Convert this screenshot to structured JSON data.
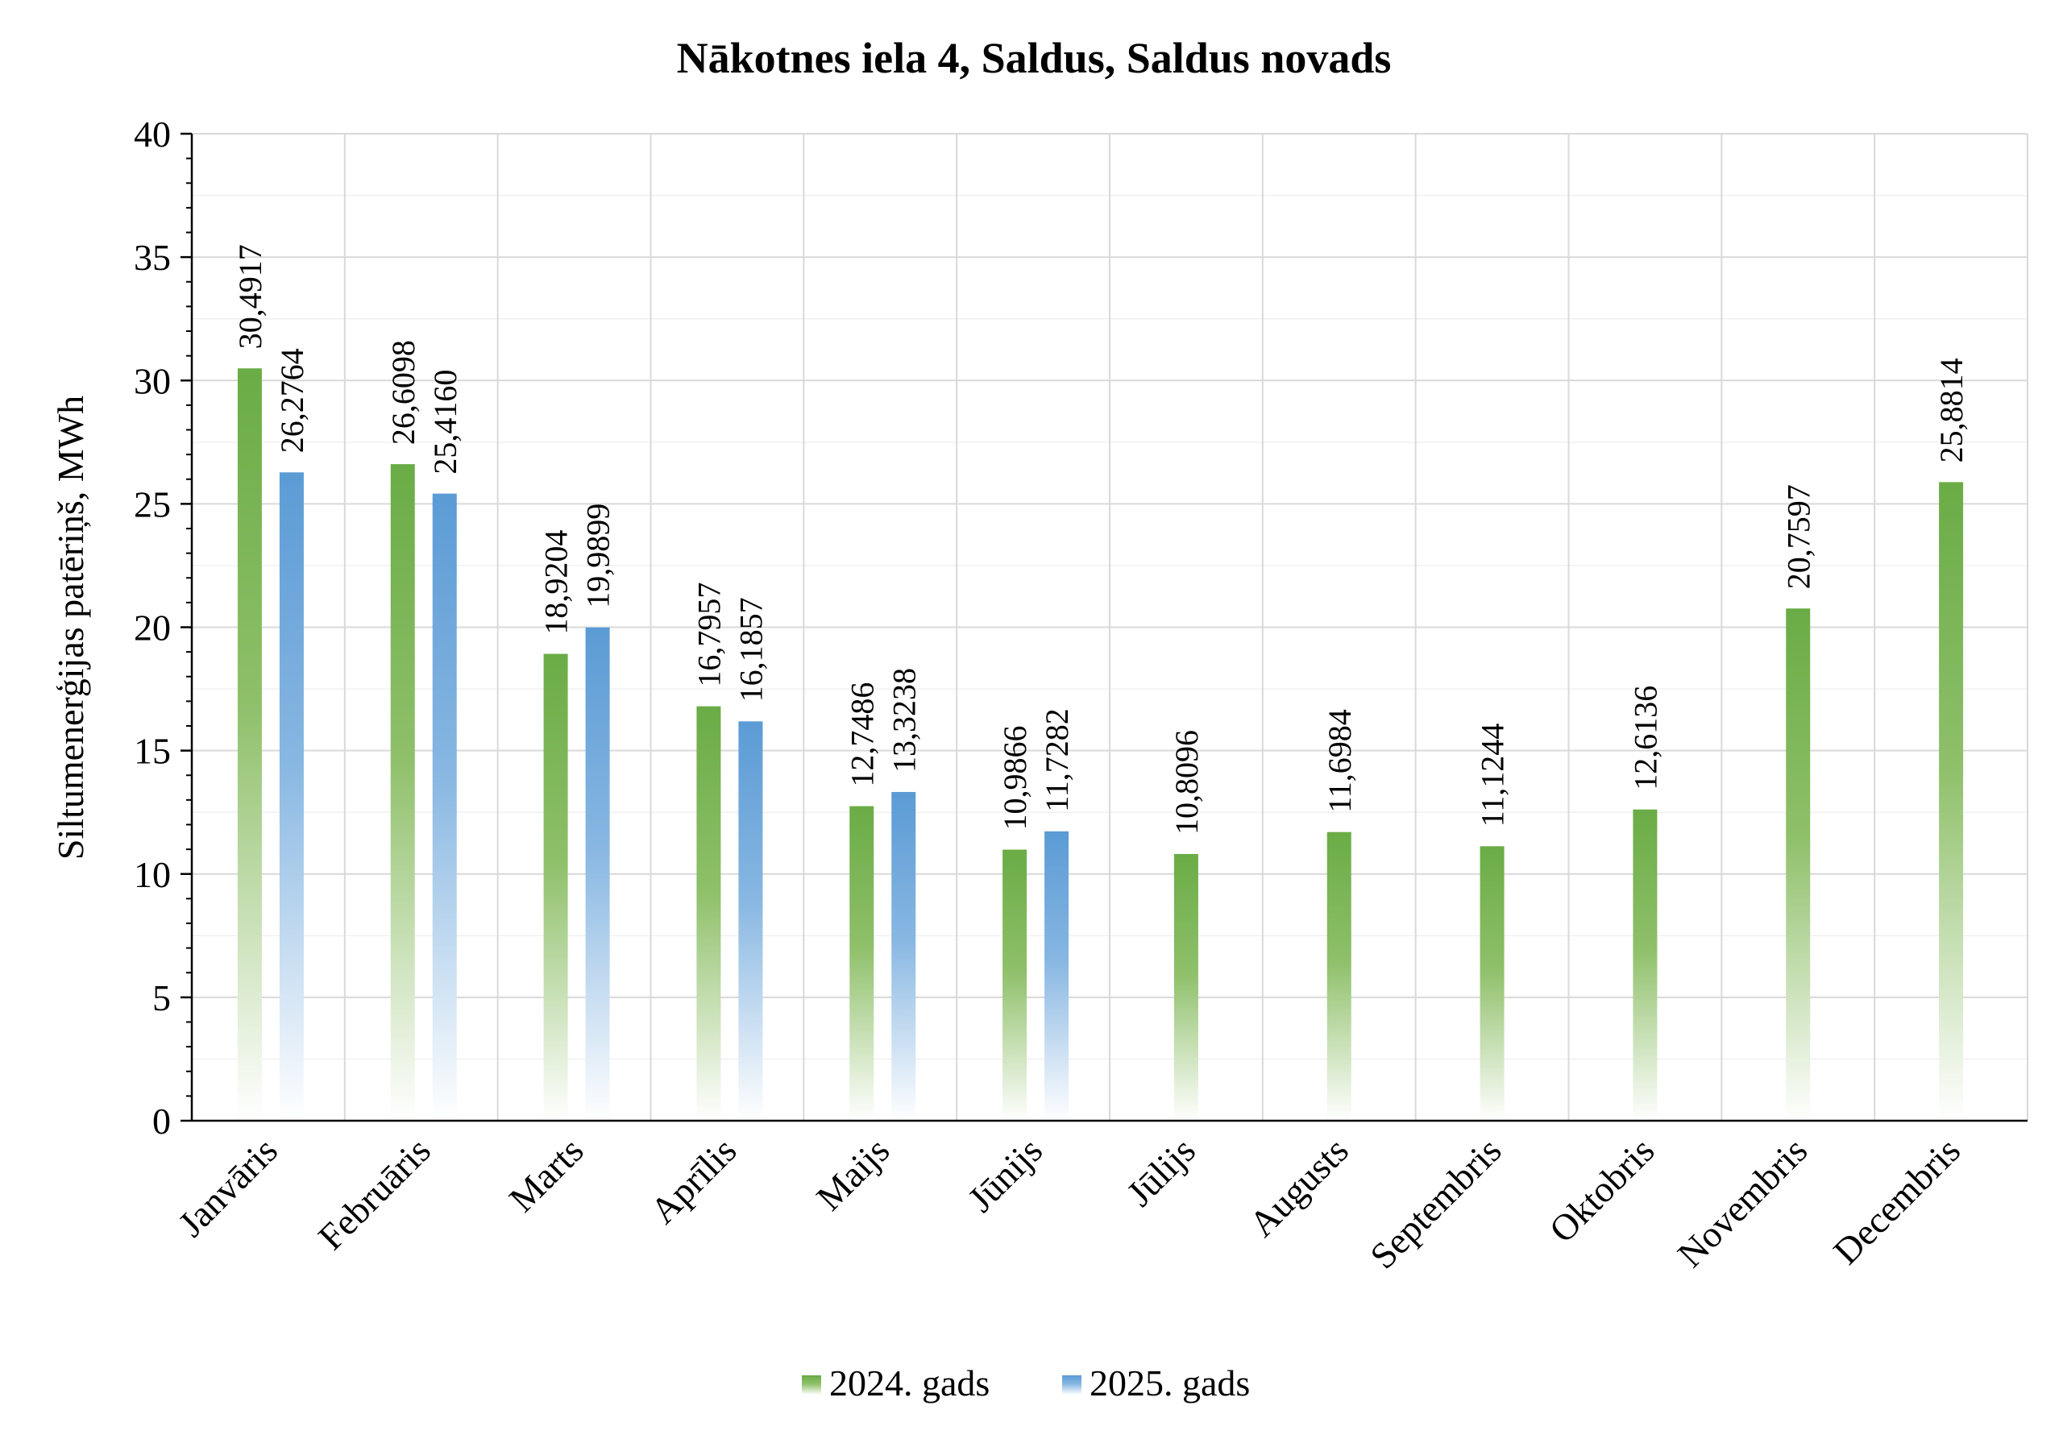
{
  "chart_data": {
    "type": "bar",
    "title": "Nākotnes iela 4, Saldus, Saldus novads",
    "ylabel": "Siltumenerģijas patēriņš, MWh",
    "xlabel": "",
    "ylim": [
      0,
      40
    ],
    "yticks": [
      0,
      5,
      10,
      15,
      20,
      25,
      30,
      35,
      40
    ],
    "grid": true,
    "legend_position": "bottom",
    "categories": [
      "Janvāris",
      "Februāris",
      "Marts",
      "Aprīlis",
      "Maijs",
      "Jūnijs",
      "Jūlijs",
      "Augusts",
      "Septembris",
      "Oktobris",
      "Novembris",
      "Decembris"
    ],
    "series": [
      {
        "name": "2024. gads",
        "color": "#6aac46",
        "values": [
          30.4917,
          26.6098,
          18.9204,
          16.7957,
          12.7486,
          10.9866,
          10.8096,
          11.6984,
          11.1244,
          12.6136,
          20.7597,
          25.8814
        ],
        "labels": [
          "30,4917",
          "26,6098",
          "18,9204",
          "16,7957",
          "12,7486",
          "10,9866",
          "10,8096",
          "11,6984",
          "11,1244",
          "12,6136",
          "20,7597",
          "25,8814"
        ]
      },
      {
        "name": "2025. gads",
        "color": "#5b9bd5",
        "values": [
          26.2764,
          25.416,
          19.9899,
          16.1857,
          13.3238,
          11.7282,
          null,
          null,
          null,
          null,
          null,
          null
        ],
        "labels": [
          "26,2764",
          "25,4160",
          "19,9899",
          "16,1857",
          "13,3238",
          "11,7282",
          null,
          null,
          null,
          null,
          null,
          null
        ]
      }
    ]
  }
}
